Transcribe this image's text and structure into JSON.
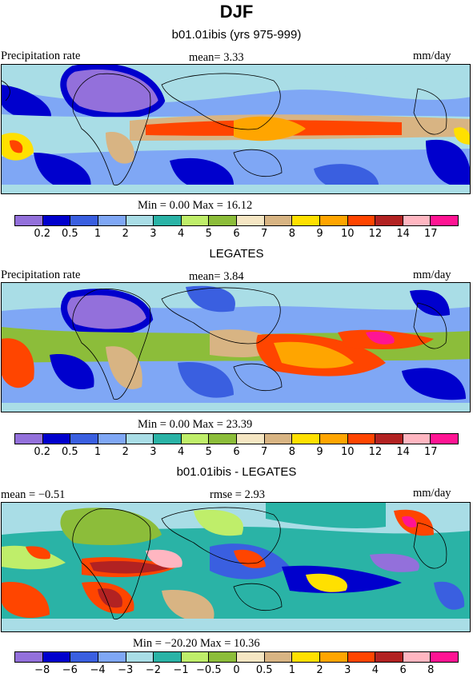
{
  "title": "DJF",
  "palette": [
    "#9370db",
    "#0000cd",
    "#3a5fe0",
    "#7fa7f5",
    "#a9dde6",
    "#2ab3a6",
    "#bfee6a",
    "#8cbd3a",
    "#f5e6c3",
    "#d8b483",
    "#ffe000",
    "#ffa500",
    "#ff4500",
    "#b22222",
    "#ffb6c1",
    "#ff1493"
  ],
  "panels": [
    {
      "title": "b01.01ibis (yrs 975-999)",
      "left_label": "Precipitation rate",
      "mid_label": "mean=   3.33",
      "units": "mm/day",
      "stats": "Min =    0.00 Max =   16.12",
      "ticks": [
        "0.2",
        "0.5",
        "1",
        "2",
        "3",
        "4",
        "5",
        "6",
        "7",
        "8",
        "9",
        "10",
        "12",
        "14",
        "17"
      ]
    },
    {
      "title": "LEGATES",
      "left_label": "Precipitation rate",
      "mid_label": "mean=   3.84",
      "units": "mm/day",
      "stats": "Min =    0.00 Max =   23.39",
      "ticks": [
        "0.2",
        "0.5",
        "1",
        "2",
        "3",
        "4",
        "5",
        "6",
        "7",
        "8",
        "9",
        "10",
        "12",
        "14",
        "17"
      ]
    },
    {
      "title": "b01.01ibis - LEGATES",
      "left_label": "mean =  −0.51",
      "mid_label": "rmse =    2.93",
      "units": "mm/day",
      "stats": "Min = −20.20 Max =   10.36",
      "ticks": [
        "−8",
        "−6",
        "−4",
        "−3",
        "−2",
        "−1",
        "−0.5",
        "0",
        "0.5",
        "1",
        "2",
        "3",
        "4",
        "6",
        "8"
      ]
    }
  ]
}
